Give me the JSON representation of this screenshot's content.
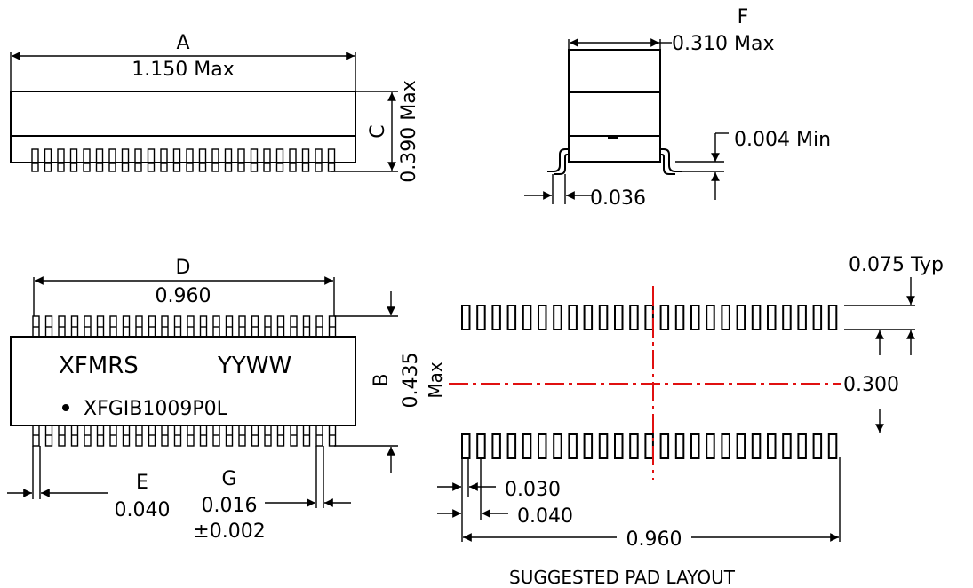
{
  "side_view": {
    "dim_letter": "A",
    "width_value": "1.150 Max",
    "height_letter": "C",
    "height_value": "0.390 Max"
  },
  "end_view": {
    "dim_letter": "F",
    "width_value": "0.310 Max",
    "standoff_value": "0.004 Min",
    "lead_value": "0.036"
  },
  "top_view": {
    "dim_letter": "D",
    "span_value": "0.960",
    "body_letter": "B",
    "body_value": "0.435",
    "body_suffix": "Max",
    "pitch_letter": "E",
    "pitch_value": "0.040",
    "lead_letter": "G",
    "lead_width_value": "0.016",
    "lead_width_tol": "±0.002",
    "marking_company": "XFMRS",
    "marking_date": "YYWW",
    "part_number": "XFGIB1009P0L",
    "pin1_dot": "•"
  },
  "pad_layout": {
    "pad_length_value": "0.075 Typ",
    "row_spacing_value": "0.300",
    "pad_width_value": "0.030",
    "pad_pitch_value": "0.040",
    "span_value": "0.960",
    "caption": "SUGGESTED PAD LAYOUT",
    "pads_per_row": 25
  }
}
